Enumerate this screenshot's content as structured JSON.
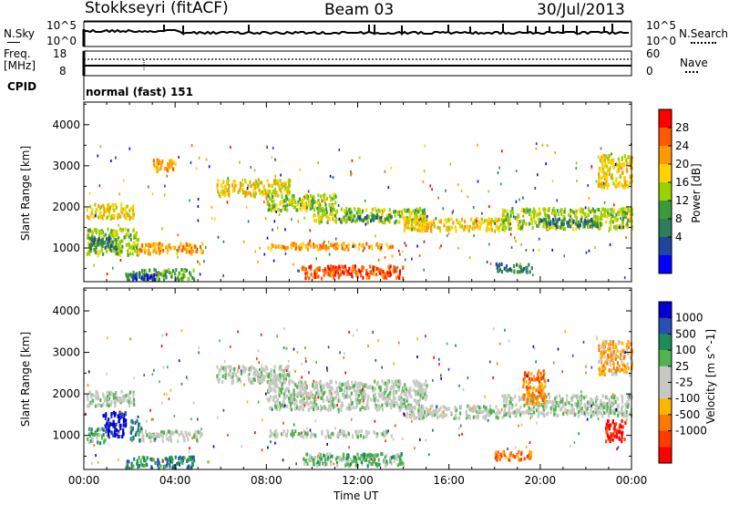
{
  "header": {
    "station": "Stokkseyri (fitACF)",
    "beam": "Beam 03",
    "date": "30/Jul/2013"
  },
  "panels": {
    "nsky": {
      "label": "N.Sky",
      "left_ticks": [
        "10^5",
        "10^0"
      ],
      "right_ticks": [
        "10^5",
        "10^0"
      ],
      "right_label": "N.Search"
    },
    "freq": {
      "label_line1": "Freq.",
      "label_line2": "[MHz]",
      "left_ticks": [
        "18",
        "8"
      ],
      "right_ticks": [
        "60",
        "0"
      ],
      "right_label": "Nave"
    },
    "cpid": {
      "label": "CPID",
      "value": "normal (fast) 151"
    }
  },
  "chart_data": [
    {
      "type": "heatmap",
      "name": "power",
      "ylabel": "Slant Range [km]",
      "xlabel": "Time UT",
      "ylim": [
        180,
        4550
      ],
      "xlim": [
        0,
        24
      ],
      "y_ticks": [
        1000,
        2000,
        3000,
        4000
      ],
      "x_tick_labels": [
        "00:00",
        "04:00",
        "08:00",
        "12:00",
        "16:00",
        "20:00",
        "00:00"
      ],
      "colorbar": {
        "label": "Power [dB]",
        "ticks": [
          "28",
          "24",
          "20",
          "16",
          "12",
          "8",
          "4"
        ],
        "colors": [
          "#ff0000",
          "#ff5a00",
          "#ff9a00",
          "#ffd200",
          "#9ad200",
          "#3c9a3c",
          "#2d7d5a",
          "#1e46a0",
          "#0000ff"
        ]
      },
      "bands": [
        {
          "t0": 0.1,
          "t1": 2.2,
          "y0": 1750,
          "y1": 2100,
          "level": 3
        },
        {
          "t0": 0.1,
          "t1": 2.4,
          "y0": 850,
          "y1": 1500,
          "level": 4
        },
        {
          "t0": 0.2,
          "t1": 1.4,
          "y0": 1000,
          "y1": 1300,
          "level": 6
        },
        {
          "t0": 2.3,
          "t1": 5.2,
          "y0": 900,
          "y1": 1150,
          "level": 2
        },
        {
          "t0": 1.8,
          "t1": 4.8,
          "y0": 250,
          "y1": 520,
          "level": 5
        },
        {
          "t0": 2.0,
          "t1": 3.2,
          "y0": 260,
          "y1": 400,
          "level": 8
        },
        {
          "t0": 5.8,
          "t1": 9.0,
          "y0": 2300,
          "y1": 2700,
          "level": 3
        },
        {
          "t0": 8.0,
          "t1": 11.0,
          "y0": 1950,
          "y1": 2350,
          "level": 4
        },
        {
          "t0": 10.0,
          "t1": 15.0,
          "y0": 1650,
          "y1": 2000,
          "level": 4
        },
        {
          "t0": 11.5,
          "t1": 13.5,
          "y0": 1700,
          "y1": 1850,
          "level": 6
        },
        {
          "t0": 14.0,
          "t1": 18.5,
          "y0": 1450,
          "y1": 1750,
          "level": 3
        },
        {
          "t0": 8.0,
          "t1": 13.5,
          "y0": 1000,
          "y1": 1150,
          "level": 2
        },
        {
          "t0": 18.0,
          "t1": 19.6,
          "y0": 450,
          "y1": 650,
          "level": 6
        },
        {
          "t0": 18.3,
          "t1": 24.0,
          "y0": 1500,
          "y1": 2000,
          "level": 4
        },
        {
          "t0": 20.0,
          "t1": 22.5,
          "y0": 1550,
          "y1": 1750,
          "level": 6
        },
        {
          "t0": 22.5,
          "t1": 24.0,
          "y0": 2500,
          "y1": 3300,
          "level": 3
        },
        {
          "t0": 3.0,
          "t1": 4.0,
          "y0": 2900,
          "y1": 3200,
          "level": 2
        },
        {
          "t0": 9.5,
          "t1": 14.0,
          "y0": 300,
          "y1": 600,
          "level": 1
        }
      ]
    },
    {
      "type": "heatmap",
      "name": "velocity",
      "ylabel": "Slant Range [km]",
      "xlabel": "Time UT",
      "ylim": [
        180,
        4550
      ],
      "xlim": [
        0,
        24
      ],
      "y_ticks": [
        1000,
        2000,
        3000,
        4000
      ],
      "x_tick_labels": [
        "00:00",
        "04:00",
        "08:00",
        "12:00",
        "16:00",
        "20:00",
        "00:00"
      ],
      "colorbar": {
        "label": "Velocity [m s^-1]",
        "ticks": [
          "1000",
          "500",
          "100",
          "25",
          "-25",
          "-100",
          "-500",
          "-1000"
        ],
        "colors": [
          "#0000d2",
          "#2850b4",
          "#1e8c5a",
          "#50b450",
          "#c8c8c3",
          "#c8c8c3",
          "#ffb400",
          "#ff7800",
          "#ff3c00",
          "#ff0000"
        ]
      },
      "bands": [
        {
          "t0": 0.1,
          "t1": 2.2,
          "y0": 1750,
          "y1": 2100,
          "level": 4
        },
        {
          "t0": 0.8,
          "t1": 1.8,
          "y0": 1000,
          "y1": 1600,
          "level": 0
        },
        {
          "t0": 0.1,
          "t1": 0.9,
          "y0": 850,
          "y1": 1200,
          "level": 3
        },
        {
          "t0": 2.0,
          "t1": 2.5,
          "y0": 900,
          "y1": 1400,
          "level": 2
        },
        {
          "t0": 2.5,
          "t1": 5.2,
          "y0": 900,
          "y1": 1150,
          "level": 4
        },
        {
          "t0": 1.8,
          "t1": 4.8,
          "y0": 250,
          "y1": 520,
          "level": 2
        },
        {
          "t0": 5.8,
          "t1": 9.0,
          "y0": 2300,
          "y1": 2700,
          "level": 4
        },
        {
          "t0": 8.0,
          "t1": 15.0,
          "y0": 1650,
          "y1": 2350,
          "level": 4
        },
        {
          "t0": 14.0,
          "t1": 18.5,
          "y0": 1450,
          "y1": 1750,
          "level": 4
        },
        {
          "t0": 8.0,
          "t1": 13.5,
          "y0": 1000,
          "y1": 1150,
          "level": 4
        },
        {
          "t0": 18.0,
          "t1": 19.6,
          "y0": 450,
          "y1": 650,
          "level": 7
        },
        {
          "t0": 18.3,
          "t1": 24.0,
          "y0": 1500,
          "y1": 2000,
          "level": 4
        },
        {
          "t0": 19.2,
          "t1": 20.2,
          "y0": 1800,
          "y1": 2600,
          "level": 7
        },
        {
          "t0": 22.8,
          "t1": 23.7,
          "y0": 900,
          "y1": 1400,
          "level": 9
        },
        {
          "t0": 22.5,
          "t1": 24.0,
          "y0": 2500,
          "y1": 3300,
          "level": 6
        },
        {
          "t0": 9.5,
          "t1": 14.0,
          "y0": 300,
          "y1": 600,
          "level": 3
        }
      ]
    }
  ]
}
